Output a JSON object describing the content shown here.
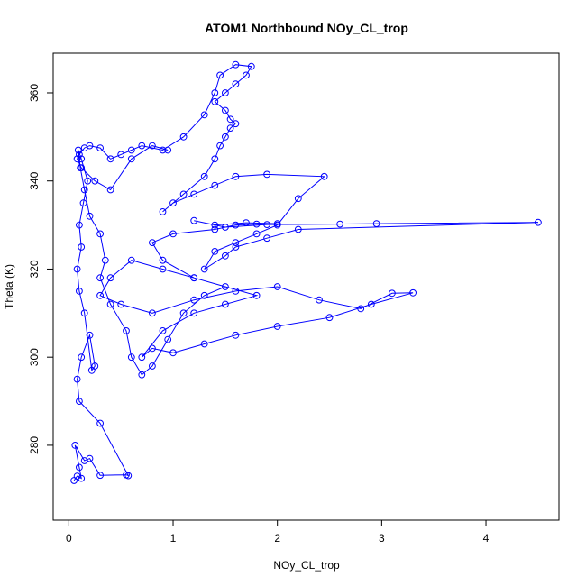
{
  "chart_data": {
    "type": "scatter",
    "title": "ATOM1 Northbound NOy_CL_trop",
    "xlabel": "NOy_CL_trop",
    "ylabel": "Theta (K)",
    "xlim": [
      -0.15,
      4.7
    ],
    "ylim": [
      263,
      369
    ],
    "x_ticks": [
      0,
      1,
      2,
      3,
      4
    ],
    "x_tick_labels": [
      "0",
      "1",
      "2",
      "3",
      "4"
    ],
    "y_ticks": [
      280,
      300,
      320,
      340,
      360
    ],
    "y_tick_labels": [
      "280",
      "300",
      "320",
      "340",
      "360"
    ],
    "series_color": "#0000ff",
    "grid": false,
    "marker": "open-circle",
    "connected": true,
    "series": [
      {
        "x": [
          0.05,
          0.08,
          0.12,
          0.1,
          0.06,
          0.15,
          0.2,
          0.3,
          0.55,
          0.57,
          0.3,
          0.1,
          0.08,
          0.12,
          0.2,
          0.25,
          0.22,
          0.15,
          0.1,
          0.08,
          0.12,
          0.1,
          0.14,
          0.18,
          0.12,
          0.09,
          0.11,
          0.15,
          0.2,
          0.3,
          0.35,
          0.3,
          0.4,
          0.55,
          0.6,
          0.7,
          0.8,
          0.95,
          1.1,
          1.3,
          1.5,
          1.2,
          0.9,
          0.6,
          0.4,
          0.3,
          0.5,
          0.8,
          1.2,
          1.6,
          2.0,
          2.4,
          2.8,
          3.1,
          3.3,
          2.9,
          2.5,
          2.0,
          1.6,
          1.3,
          1.0,
          0.8,
          0.7,
          0.9,
          1.2,
          1.5,
          1.8,
          1.2,
          0.9,
          0.8,
          1.0,
          1.4,
          1.6,
          1.8,
          2.0,
          1.7,
          1.4,
          1.2,
          1.5,
          1.9,
          2.6,
          2.95,
          4.5,
          2.2,
          1.9,
          1.6,
          1.5,
          1.3,
          1.4,
          1.6,
          1.8,
          2.0,
          2.2,
          2.45,
          1.9,
          1.6,
          1.4,
          1.2,
          1.0,
          0.9,
          1.1,
          1.3,
          1.4,
          1.45,
          1.5,
          1.55,
          1.6,
          1.55,
          1.5,
          1.4,
          1.5,
          1.6,
          1.7,
          1.75,
          1.6,
          1.45,
          1.4,
          1.3,
          1.1,
          0.9,
          0.7,
          0.6,
          0.5,
          0.4,
          0.3,
          0.2,
          0.15,
          0.1,
          0.08,
          0.12,
          0.25,
          0.4,
          0.6,
          0.8,
          0.95
        ],
        "y": [
          272,
          273,
          272.5,
          275,
          280,
          276.5,
          277,
          273.2,
          273.3,
          273.1,
          285,
          290,
          295,
          300,
          305,
          298,
          297,
          310,
          315,
          320,
          325,
          330,
          335,
          340,
          345,
          347,
          343,
          338,
          332,
          328,
          322,
          318,
          312,
          306,
          300,
          296,
          298,
          304,
          310,
          314,
          316,
          318,
          320,
          322,
          318,
          314,
          312,
          310,
          313,
          315,
          316,
          313,
          311,
          314.5,
          314.6,
          312,
          309,
          307,
          305,
          303,
          301,
          302,
          300,
          306,
          310,
          312,
          314,
          318,
          322,
          326,
          328,
          329,
          330,
          330.2,
          330.3,
          330.5,
          330,
          331,
          329.5,
          330.1,
          330.2,
          330.3,
          330.6,
          329,
          327,
          325,
          323,
          320,
          324,
          326,
          328,
          330,
          336,
          341,
          341.5,
          341,
          339,
          337,
          335,
          333,
          337,
          341,
          345,
          348,
          350,
          352,
          353,
          354,
          356,
          358,
          360,
          362,
          364,
          366,
          366.4,
          364,
          360,
          355,
          350,
          347,
          348,
          347,
          346,
          345,
          347.5,
          348,
          347.5,
          346,
          345,
          343,
          340,
          338,
          345,
          348,
          347
        ]
      }
    ]
  }
}
